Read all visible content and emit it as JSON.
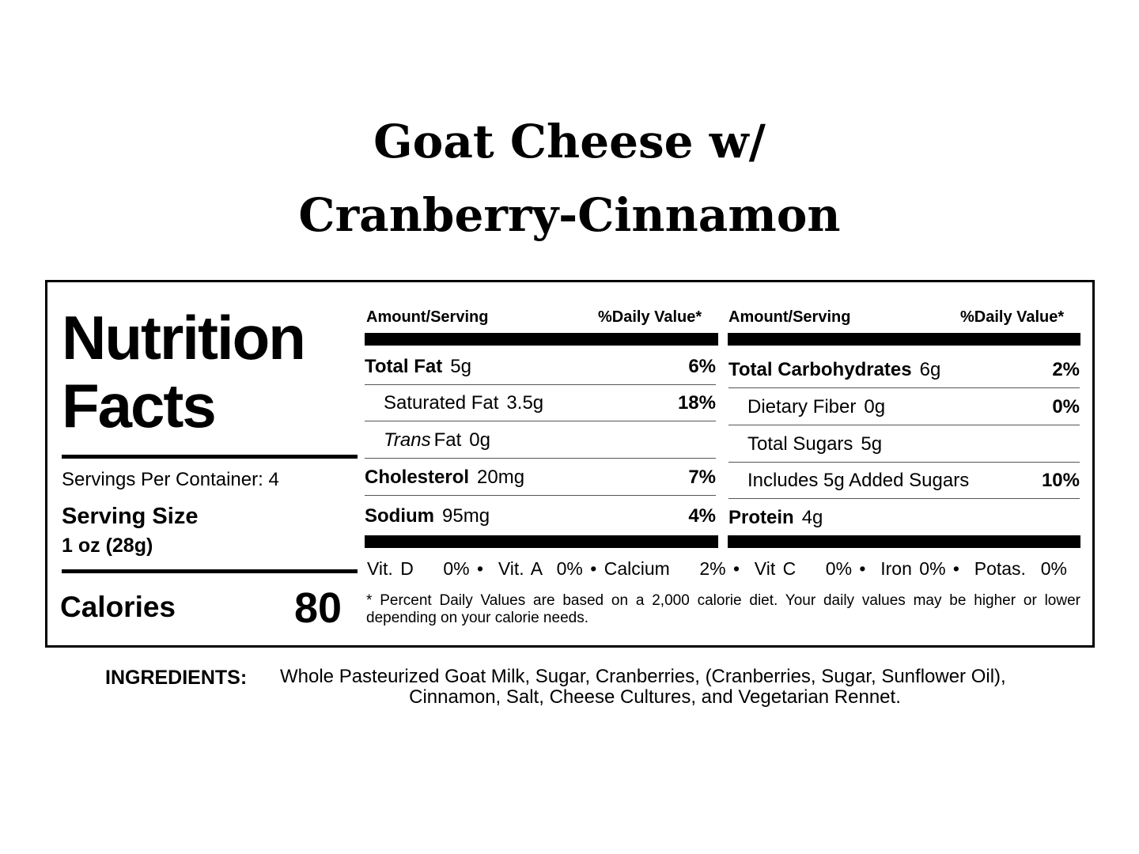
{
  "title": {
    "line1": "Goat Cheese w/",
    "line2": "Cranberry-Cinnamon"
  },
  "label": {
    "heading1": "Nutrition",
    "heading2": "Facts",
    "servings": "Servings Per Container: 4",
    "serving_size_label": "Serving Size",
    "serving_size_value": "1 oz (28g)",
    "calories_label": "Calories",
    "calories_value": "80",
    "col_header_amount": "Amount/Serving",
    "col_header_dv": "%Daily Value*",
    "left_rows": [
      {
        "name": "Total Fat",
        "amount": "5g",
        "dv": "6%",
        "bold": true
      },
      {
        "name": "Saturated Fat",
        "amount": "3.5g",
        "dv": "18%",
        "bold": false
      },
      {
        "name": "Trans",
        "name_suffix": "Fat",
        "amount": "0g",
        "dv": "",
        "bold": false
      },
      {
        "name": "Cholesterol",
        "amount": "20mg",
        "dv": "7%",
        "bold": true
      },
      {
        "name": "Sodium",
        "amount": "95mg",
        "dv": "4%",
        "bold": true
      }
    ],
    "right_rows": [
      {
        "name": "Total Carbohydrates",
        "amount": "6g",
        "dv": "2%",
        "bold": true
      },
      {
        "name": "Dietary Fiber",
        "amount": "0g",
        "dv": "0%",
        "bold": false
      },
      {
        "name": "Total Sugars",
        "amount": "5g",
        "dv": "",
        "bold": false
      },
      {
        "name": "Includes 5g Added Sugars",
        "amount": "",
        "dv": "10%",
        "bold": false
      },
      {
        "name": "Protein",
        "amount": "4g",
        "dv": "",
        "bold": true
      }
    ],
    "vitamins": "Vit. D    0% •  Vit. A  0% • Calcium    2% •  Vit C    0% •  Iron 0% •  Potas.  0%",
    "footnote": "* Percent Daily Values are based on a 2,000 calorie diet. Your daily values may be higher or lower depending on your calorie needs."
  },
  "ingredients": {
    "label": "INGREDIENTS:",
    "line1": "Whole Pasteurized Goat Milk, Sugar, Cranberries, (Cranberries, Sugar, Sunflower Oil),",
    "line2": "Cinnamon, Salt, Cheese Cultures, and Vegetarian Rennet."
  }
}
